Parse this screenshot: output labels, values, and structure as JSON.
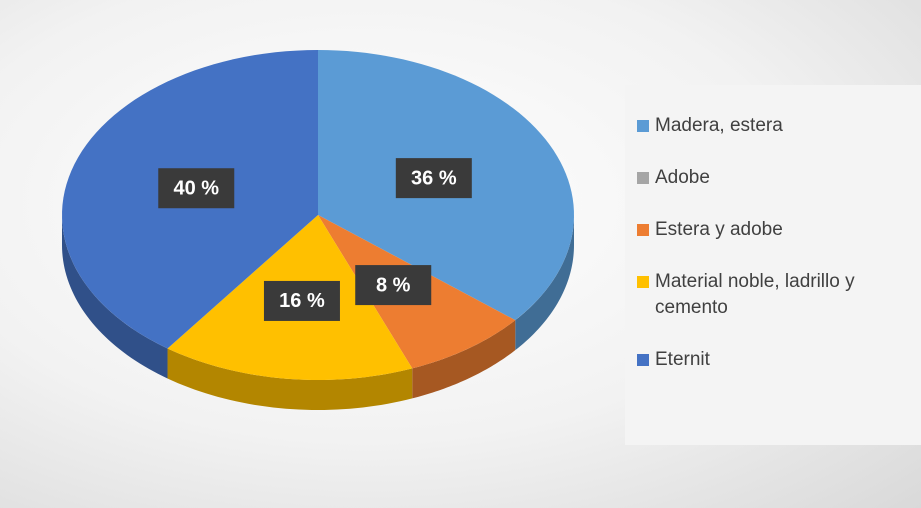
{
  "chart_data": {
    "type": "pie",
    "categories": [
      "Madera, estera",
      "Adobe",
      "Estera y adobe",
      "Material noble, ladrillo y cemento",
      "Eternit"
    ],
    "values": [
      36,
      0,
      8,
      16,
      40
    ],
    "value_labels": [
      "36 %",
      null,
      "8 %",
      "16 %",
      "40 %"
    ],
    "colors": [
      "#5b9bd5",
      "#a5a5a5",
      "#ed7d31",
      "#ffc000",
      "#4472c4"
    ],
    "legend": "right"
  }
}
